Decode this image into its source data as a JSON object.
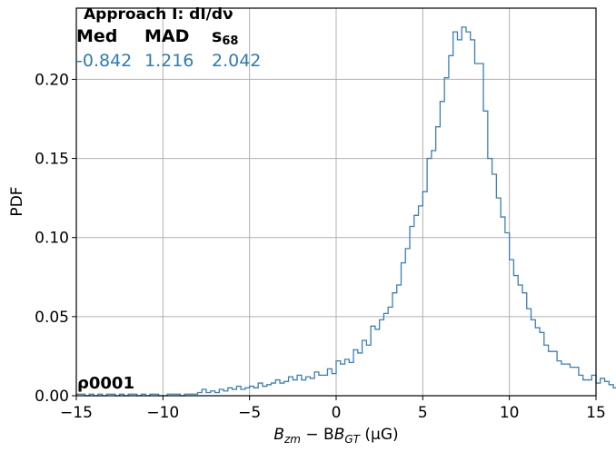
{
  "chart_data": {
    "type": "step-histogram",
    "title": "",
    "xlabel_main": "B",
    "xlabel_sub1": "zm",
    "xlabel_mid": " − B",
    "xlabel_sub2": "GT",
    "xlabel_unit": " (μG)",
    "ylabel": "PDF",
    "xlim": [
      -15,
      15
    ],
    "ylim": [
      0,
      0.245
    ],
    "xticks": [
      -15,
      -10,
      -5,
      0,
      5,
      10,
      15
    ],
    "xtick_labels": [
      "−15",
      "−10",
      "−5",
      "0",
      "5",
      "10",
      "15"
    ],
    "yticks": [
      0,
      0.05,
      0.1,
      0.15,
      0.2
    ],
    "ytick_labels": [
      "0.00",
      "0.05",
      "0.10",
      "0.15",
      "0.20"
    ],
    "grid": true,
    "line_color": "#3a7fb5",
    "bin_width": 0.25,
    "bin_start": -15,
    "values": [
      0.001,
      0.001,
      0.0,
      0.001,
      0.0,
      0.001,
      0.0,
      0.001,
      0.001,
      0.0,
      0.001,
      0.0,
      0.001,
      0.001,
      0.0,
      0.001,
      0.0,
      0.001,
      0.001,
      0.0,
      0.0,
      0.001,
      0.001,
      0.001,
      0.0,
      0.001,
      0.001,
      0.001,
      0.002,
      0.004,
      0.002,
      0.003,
      0.002,
      0.004,
      0.003,
      0.005,
      0.004,
      0.006,
      0.004,
      0.005,
      0.006,
      0.005,
      0.008,
      0.006,
      0.007,
      0.008,
      0.01,
      0.008,
      0.009,
      0.012,
      0.01,
      0.013,
      0.01,
      0.012,
      0.011,
      0.015,
      0.013,
      0.013,
      0.017,
      0.014,
      0.022,
      0.02,
      0.023,
      0.021,
      0.029,
      0.027,
      0.035,
      0.032,
      0.044,
      0.042,
      0.048,
      0.052,
      0.056,
      0.065,
      0.07,
      0.084,
      0.093,
      0.107,
      0.114,
      0.12,
      0.129,
      0.15,
      0.155,
      0.17,
      0.186,
      0.201,
      0.215,
      0.23,
      0.225,
      0.233,
      0.23,
      0.225,
      0.21,
      0.21,
      0.18,
      0.15,
      0.14,
      0.125,
      0.113,
      0.103,
      0.086,
      0.076,
      0.07,
      0.065,
      0.055,
      0.048,
      0.043,
      0.04,
      0.032,
      0.028,
      0.028,
      0.022,
      0.02,
      0.02,
      0.018,
      0.018,
      0.013,
      0.01,
      0.01,
      0.013,
      0.008,
      0.011,
      0.009,
      0.007,
      0.005,
      0.005,
      0.003,
      0.004,
      0.005,
      0.003,
      0.004,
      0.002,
      0.004,
      0.005,
      0.004,
      0.004,
      0.003,
      0.007,
      0.005,
      0.004,
      0.002,
      0.004,
      0.003,
      0.002,
      0.003,
      0.001,
      0.002,
      0.002,
      0.001,
      0.001,
      0.001,
      0.001,
      0.002,
      0.001,
      0.001,
      0.001,
      0.0,
      0.001,
      0.0,
      0.0,
      0.0,
      0.0,
      0.0,
      0.0,
      0.0,
      0.0,
      0.0,
      0.0,
      0.0,
      0.0,
      0.0,
      0.0,
      0.0,
      0.0,
      0.0,
      0.0,
      0.0,
      0.0,
      0.0,
      0.0,
      0.0,
      0.0,
      0.0,
      0.0,
      0.0,
      0.0
    ]
  },
  "annotations": {
    "approach": "Approach I: dI/dν",
    "med_label": "Med",
    "mad_label": "MAD",
    "s68_label": "s",
    "s68_sub": "68",
    "med_value": "-0.842",
    "mad_value": "1.216",
    "s68_value": "2.042",
    "rho_label": "ρ0001"
  }
}
